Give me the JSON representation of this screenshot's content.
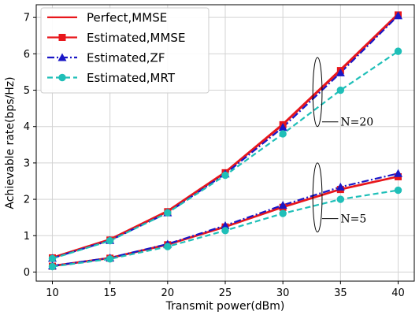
{
  "chart_data": {
    "type": "line",
    "xlabel": "Transmit power(dBm)",
    "ylabel": "Achievable rate(bps/Hz)",
    "xlim": [
      8.6,
      41.4
    ],
    "ylim": [
      -0.25,
      7.35
    ],
    "grid": true,
    "legend_position": "top-left",
    "x": [
      10,
      15,
      20,
      25,
      30,
      35,
      40
    ],
    "x_ticks": [
      "10",
      "15",
      "20",
      "25",
      "30",
      "35",
      "40"
    ],
    "y_ticks": [
      "0",
      "1",
      "2",
      "3",
      "4",
      "5",
      "6",
      "7"
    ],
    "series": [
      {
        "name": "Perfect,MMSE",
        "group": "N=20",
        "color": "#e8171c",
        "linestyle": "solid",
        "marker": "none",
        "values": [
          0.4,
          0.9,
          1.68,
          2.75,
          4.07,
          5.57,
          7.1
        ]
      },
      {
        "name": "Estimated,MMSE",
        "group": "N=20",
        "color": "#e8171c",
        "linestyle": "solid",
        "marker": "square",
        "values": [
          0.39,
          0.88,
          1.66,
          2.73,
          4.05,
          5.54,
          7.07
        ]
      },
      {
        "name": "Estimated,ZF",
        "group": "N=20",
        "color": "#1a17c6",
        "linestyle": "dashdot",
        "marker": "triangle",
        "values": [
          0.38,
          0.87,
          1.63,
          2.7,
          3.98,
          5.48,
          7.05
        ]
      },
      {
        "name": "Estimated,MRT",
        "group": "N=20",
        "color": "#1fbfb8",
        "linestyle": "dashed",
        "marker": "circle",
        "values": [
          0.37,
          0.86,
          1.63,
          2.66,
          3.8,
          5.0,
          6.07
        ]
      },
      {
        "name": "Perfect,MMSE",
        "group": "N=5",
        "color": "#e8171c",
        "linestyle": "solid",
        "marker": "none",
        "values": [
          0.17,
          0.39,
          0.76,
          1.25,
          1.79,
          2.28,
          2.63
        ]
      },
      {
        "name": "Estimated,MMSE",
        "group": "N=5",
        "color": "#e8171c",
        "linestyle": "solid",
        "marker": "square",
        "values": [
          0.16,
          0.38,
          0.75,
          1.24,
          1.78,
          2.27,
          2.62
        ]
      },
      {
        "name": "Estimated,ZF",
        "group": "N=5",
        "color": "#1a17c6",
        "linestyle": "dashdot",
        "marker": "triangle",
        "values": [
          0.17,
          0.39,
          0.77,
          1.28,
          1.84,
          2.34,
          2.71
        ]
      },
      {
        "name": "Estimated,MRT",
        "group": "N=5",
        "color": "#1fbfb8",
        "linestyle": "dashed",
        "marker": "circle",
        "values": [
          0.15,
          0.36,
          0.7,
          1.14,
          1.61,
          2.0,
          2.25
        ]
      }
    ],
    "legend": [
      {
        "label": "Perfect,MMSE",
        "color": "#e8171c",
        "linestyle": "solid",
        "marker": "none"
      },
      {
        "label": "Estimated,MMSE",
        "color": "#e8171c",
        "linestyle": "solid",
        "marker": "square"
      },
      {
        "label": "Estimated,ZF",
        "color": "#1a17c6",
        "linestyle": "dashdot",
        "marker": "triangle"
      },
      {
        "label": "Estimated,MRT",
        "color": "#1fbfb8",
        "linestyle": "dashed",
        "marker": "circle"
      }
    ],
    "annotations": [
      {
        "text": "N=20",
        "ellipse_center": [
          33,
          4.95
        ],
        "ellipse_radii": [
          0.4,
          0.95
        ],
        "leader_to": [
          34.8,
          4.13
        ]
      },
      {
        "text": "N=5",
        "ellipse_center": [
          33,
          2.05
        ],
        "ellipse_radii": [
          0.4,
          0.95
        ],
        "leader_to": [
          34.8,
          1.47
        ]
      }
    ]
  }
}
